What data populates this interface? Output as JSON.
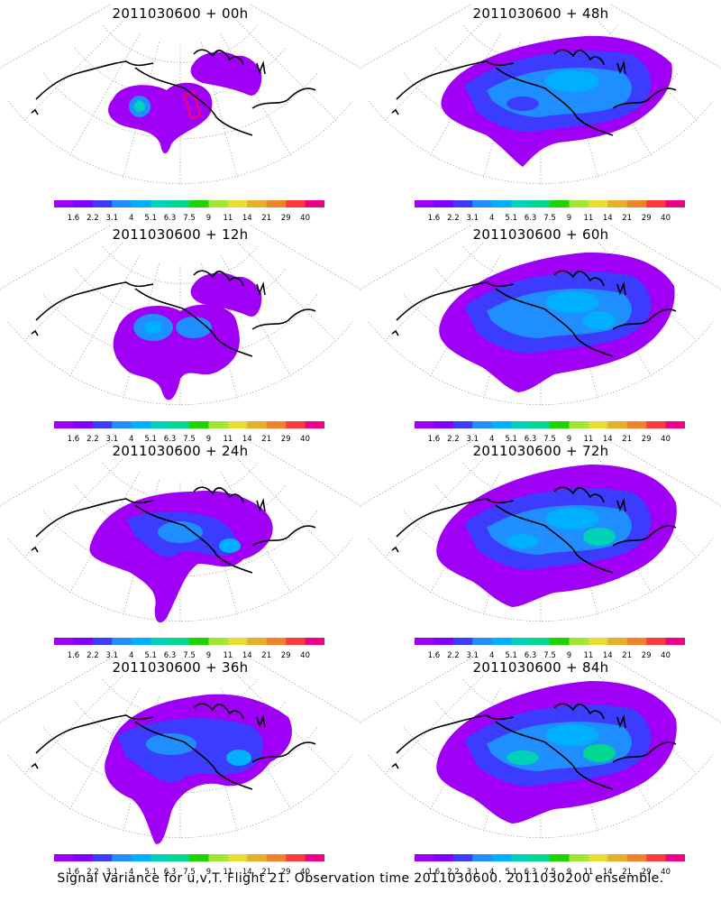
{
  "panels": [
    {
      "title": "2011030600 + 00h",
      "level": 0
    },
    {
      "title": "2011030600 + 48h",
      "level": 4
    },
    {
      "title": "2011030600 + 12h",
      "level": 1
    },
    {
      "title": "2011030600 + 60h",
      "level": 5
    },
    {
      "title": "2011030600 + 24h",
      "level": 2
    },
    {
      "title": "2011030600 + 72h",
      "level": 6
    },
    {
      "title": "2011030600 + 36h",
      "level": 3
    },
    {
      "title": "2011030600 + 84h",
      "level": 7
    }
  ],
  "colorbar": {
    "labels": [
      "1.6",
      "2.2",
      "3.1",
      "4",
      "5.1",
      "6.3",
      "7.5",
      "9",
      "11",
      "14",
      "21",
      "29",
      "40"
    ],
    "colors": [
      "#9f00f5",
      "#8000ff",
      "#3c3cff",
      "#1f8fff",
      "#00b0ff",
      "#00d2b8",
      "#00d890",
      "#1ed400",
      "#a0e632",
      "#e6dc32",
      "#e6af2d",
      "#f08228",
      "#fa3c3c",
      "#f00082"
    ]
  },
  "footer": "Signal Variance for u,v,T.  Flight 21.  Observation time 2011030600.  2011030200 ensemble."
}
